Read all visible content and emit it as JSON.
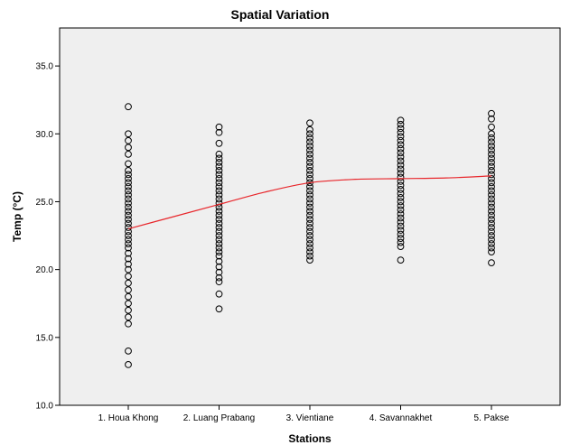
{
  "chart_data": {
    "type": "scatter",
    "title": "Spatial Variation",
    "xlabel": "Stations",
    "ylabel": "Temp (°C)",
    "categories": [
      "1. Houa Khong",
      "2. Luang Prabang",
      "3. Vientiane",
      "4. Savannakhet",
      "5. Pakse"
    ],
    "ylim": [
      10.0,
      37.8
    ],
    "yticks": [
      10.0,
      15.0,
      20.0,
      25.0,
      30.0,
      35.0
    ],
    "ytick_labels": [
      "10.0",
      "15.0",
      "20.0",
      "25.0",
      "30.0",
      "35.0"
    ],
    "grid": false,
    "series": [
      {
        "values": [
          [
            32.0,
            30.0,
            29.5,
            29.0,
            28.5,
            27.8,
            27.3,
            27.0,
            26.7,
            26.4,
            26.1,
            25.8,
            25.5,
            25.2,
            24.9,
            24.6,
            24.3,
            24.0,
            23.7,
            23.4,
            23.1,
            22.8,
            22.5,
            22.2,
            21.9,
            21.6,
            21.2,
            20.8,
            20.4,
            20.0,
            19.5,
            19.0,
            18.5,
            18.0,
            17.5,
            17.0,
            16.5,
            16.0,
            14.0,
            13.0
          ],
          [
            30.5,
            30.1,
            29.3,
            28.5,
            28.2,
            27.9,
            27.6,
            27.3,
            27.0,
            26.7,
            26.4,
            26.1,
            25.8,
            25.5,
            25.2,
            24.9,
            24.6,
            24.3,
            24.0,
            23.7,
            23.4,
            23.1,
            22.8,
            22.5,
            22.2,
            21.9,
            21.6,
            21.3,
            21.0,
            20.6,
            20.2,
            19.8,
            19.4,
            19.1,
            18.2,
            17.1
          ],
          [
            30.8,
            30.3,
            30.0,
            29.7,
            29.4,
            29.1,
            28.8,
            28.5,
            28.2,
            27.9,
            27.6,
            27.3,
            27.0,
            26.7,
            26.4,
            26.1,
            25.8,
            25.5,
            25.2,
            24.9,
            24.6,
            24.3,
            24.0,
            23.7,
            23.4,
            23.1,
            22.8,
            22.5,
            22.2,
            21.9,
            21.6,
            21.3,
            21.0,
            20.7
          ],
          [
            31.0,
            30.7,
            30.4,
            30.1,
            29.8,
            29.5,
            29.2,
            28.9,
            28.6,
            28.3,
            28.0,
            27.7,
            27.4,
            27.1,
            26.8,
            26.5,
            26.2,
            25.9,
            25.6,
            25.3,
            25.0,
            24.7,
            24.4,
            24.1,
            23.8,
            23.5,
            23.2,
            22.9,
            22.6,
            22.3,
            22.0,
            21.7,
            20.7
          ],
          [
            31.5,
            31.1,
            30.5,
            30.0,
            29.7,
            29.4,
            29.1,
            28.8,
            28.5,
            28.2,
            27.9,
            27.6,
            27.3,
            27.0,
            26.7,
            26.4,
            26.1,
            25.8,
            25.5,
            25.2,
            24.9,
            24.6,
            24.3,
            24.0,
            23.7,
            23.4,
            23.1,
            22.8,
            22.5,
            22.2,
            21.9,
            21.6,
            21.3,
            20.5
          ]
        ]
      }
    ],
    "fit_line": {
      "x": [
        1,
        1.5,
        2,
        2.5,
        3,
        3.5,
        4,
        4.5,
        5
      ],
      "y": [
        23.0,
        23.9,
        24.8,
        25.7,
        26.4,
        26.65,
        26.7,
        26.75,
        26.9
      ]
    },
    "colors": {
      "plot_bg": "#efefef",
      "marker": "#000000",
      "fit_line": "#e8262b",
      "axis": "#000000"
    }
  }
}
